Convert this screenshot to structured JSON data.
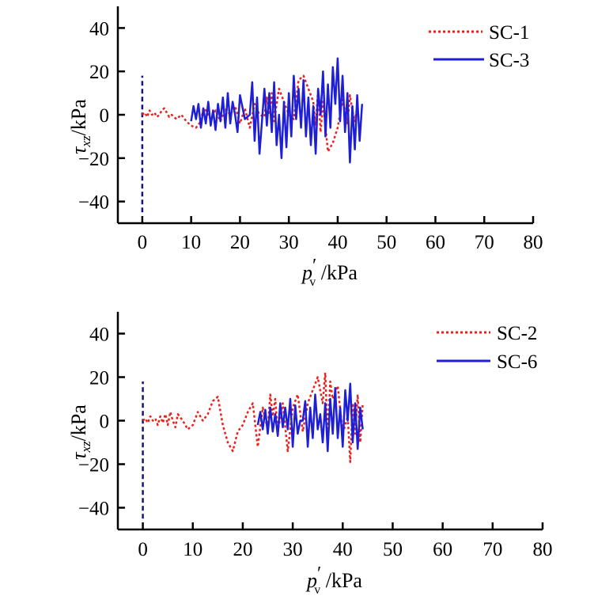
{
  "colors": {
    "red": "#e8231f",
    "blue": "#1f1fd6",
    "navy": "#14147a",
    "axis": "#000000"
  },
  "chart_data": [
    {
      "type": "line",
      "panel": "top",
      "xlabel": "p′v /kPa",
      "ylabel": "τxz/kPa",
      "xlabel_parts": {
        "main": "p",
        "prime": "′",
        "sub": "v",
        "unit": " /kPa"
      },
      "ylabel_parts": {
        "main": "τ",
        "sub": "xz",
        "unit": "/kPa"
      },
      "xlim": [
        -5,
        80
      ],
      "ylim": [
        -50,
        50
      ],
      "x_ticks": [
        0,
        10,
        20,
        30,
        40,
        50,
        60,
        70,
        80
      ],
      "y_ticks": [
        -40,
        -20,
        0,
        20,
        40
      ],
      "x_tick_labels": [
        "0",
        "10",
        "20",
        "30",
        "40",
        "50",
        "60",
        "70",
        "80"
      ],
      "y_tick_labels": [
        "−40",
        "−20",
        "0",
        "20",
        "40"
      ],
      "legend_position": "top-right",
      "reference_line": {
        "x": 0,
        "y_range": [
          -45,
          18
        ]
      },
      "series": [
        {
          "name": "SC-1",
          "style": "dotted",
          "color": "#e8231f",
          "x": [
            0,
            0.5,
            1,
            1.5,
            2,
            2.5,
            3,
            3.5,
            4,
            4.5,
            5,
            5.5,
            6,
            7,
            8,
            9,
            10,
            11,
            12,
            12.5,
            13,
            14,
            15,
            16,
            17,
            18,
            19,
            20,
            21,
            22,
            23,
            24,
            25,
            25.5,
            26,
            26.5,
            27,
            27.5,
            28,
            29,
            30,
            31,
            32,
            33,
            34,
            35,
            35.5,
            36,
            36.5,
            37,
            38,
            39,
            40,
            41,
            42,
            42.5,
            43,
            43.5,
            44
          ],
          "y": [
            0,
            1,
            -1,
            2,
            0,
            1,
            -1,
            0,
            2,
            3,
            1,
            -1,
            0,
            -2,
            0,
            -3,
            -5,
            -6,
            -3,
            3,
            2,
            -2,
            2,
            -3,
            3,
            0,
            4,
            -4,
            3,
            -6,
            5,
            0,
            -1,
            8,
            0,
            10,
            -3,
            5,
            12,
            6,
            0,
            -2,
            16,
            18,
            12,
            6,
            -5,
            12,
            -8,
            6,
            -17,
            -13,
            -6,
            7,
            -4,
            9,
            2,
            -3,
            4
          ]
        },
        {
          "name": "SC-3",
          "style": "solid",
          "color": "#1f1fd6",
          "x": [
            10,
            10.5,
            11,
            11.5,
            12,
            12.5,
            13,
            13.5,
            14,
            14.5,
            15,
            15.5,
            16,
            16.5,
            17,
            17.5,
            18,
            18.5,
            19,
            19.5,
            20,
            21,
            22,
            22.5,
            23,
            23.5,
            24,
            25,
            25.5,
            26,
            26.5,
            27,
            27.5,
            28,
            28.5,
            29,
            29.5,
            30,
            30.5,
            31,
            31.5,
            32,
            32.5,
            33,
            33.5,
            34,
            34.5,
            35,
            35.5,
            36,
            36.5,
            37,
            37.5,
            38,
            38.5,
            39,
            39.5,
            40,
            40.5,
            41,
            41.5,
            42,
            42.5,
            43,
            43.5,
            44,
            44.5,
            45
          ],
          "y": [
            -3,
            4,
            -2,
            5,
            -6,
            3,
            -4,
            6,
            -5,
            2,
            -7,
            5,
            -3,
            8,
            -6,
            10,
            -4,
            6,
            0,
            -8,
            9,
            -2,
            0,
            15,
            -12,
            8,
            -18,
            12,
            -5,
            10,
            -8,
            15,
            -14,
            0,
            -20,
            6,
            -15,
            10,
            -10,
            18,
            -2,
            12,
            -6,
            16,
            -10,
            8,
            -14,
            4,
            -18,
            12,
            0,
            20,
            -10,
            14,
            -6,
            22,
            5,
            26,
            -3,
            18,
            -8,
            10,
            -22,
            4,
            -16,
            9,
            -12,
            5
          ]
        }
      ]
    },
    {
      "type": "line",
      "panel": "bottom",
      "xlabel": "p′v /kPa",
      "ylabel": "τxz/kPa",
      "xlabel_parts": {
        "main": "p",
        "prime": "′",
        "sub": "v",
        "unit": " /kPa"
      },
      "ylabel_parts": {
        "main": "τ",
        "sub": "xz",
        "unit": "/kPa"
      },
      "xlim": [
        -5,
        80
      ],
      "ylim": [
        -50,
        50
      ],
      "x_ticks": [
        0,
        10,
        20,
        30,
        40,
        50,
        60,
        70,
        80
      ],
      "y_ticks": [
        -40,
        -20,
        0,
        20,
        40
      ],
      "x_tick_labels": [
        "0",
        "10",
        "20",
        "30",
        "40",
        "50",
        "60",
        "70",
        "80"
      ],
      "y_tick_labels": [
        "−40",
        "−20",
        "0",
        "20",
        "40"
      ],
      "legend_position": "top-right",
      "reference_line": {
        "x": 0,
        "y_range": [
          -45,
          18
        ]
      },
      "series": [
        {
          "name": "SC-2",
          "style": "dotted",
          "color": "#e8231f",
          "x": [
            0,
            0.5,
            1,
            1.5,
            2,
            2.5,
            3,
            3.5,
            4,
            4.5,
            5,
            5.5,
            6,
            6.5,
            7,
            8,
            9,
            10,
            11,
            12,
            13,
            14,
            15,
            16,
            17,
            18,
            19,
            20,
            21,
            22,
            23,
            24,
            25,
            25.5,
            26,
            26.5,
            27,
            28,
            29,
            30,
            31,
            32,
            33,
            34,
            35,
            36,
            36.5,
            37,
            37.5,
            38,
            39,
            40,
            41,
            41.5,
            42,
            42.5,
            43,
            43.5,
            44
          ],
          "y": [
            0,
            1,
            -1,
            2,
            0,
            1,
            -2,
            2,
            -1,
            3,
            -2,
            4,
            0,
            -3,
            3,
            0,
            -4,
            -2,
            4,
            0,
            3,
            9,
            11,
            -2,
            -10,
            -14,
            -5,
            -2,
            4,
            8,
            -12,
            6,
            -4,
            12,
            2,
            10,
            -5,
            8,
            -14,
            6,
            12,
            -5,
            8,
            14,
            20,
            8,
            22,
            -8,
            18,
            10,
            16,
            -6,
            2,
            -19,
            8,
            -6,
            12,
            -10,
            8
          ]
        },
        {
          "name": "SC-6",
          "style": "solid",
          "color": "#1f1fd6",
          "x": [
            23,
            23.5,
            24,
            24.5,
            25,
            25.5,
            26,
            26.5,
            27,
            27.5,
            28,
            28.5,
            29,
            29.5,
            30,
            30.5,
            31,
            31.5,
            32,
            32.5,
            33,
            33.5,
            34,
            34.5,
            35,
            35.5,
            36,
            36.5,
            37,
            37.5,
            38,
            38.5,
            39,
            39.5,
            40,
            40.5,
            41,
            41.5,
            42,
            42.5,
            43,
            43.5,
            44
          ],
          "y": [
            -2,
            4,
            -4,
            5,
            -6,
            6,
            -5,
            3,
            -7,
            8,
            -3,
            6,
            -4,
            10,
            -12,
            7,
            -6,
            0,
            0,
            9,
            -12,
            6,
            -8,
            12,
            -4,
            3,
            -10,
            8,
            -14,
            10,
            -6,
            15,
            -8,
            6,
            -12,
            14,
            0,
            17,
            -10,
            8,
            -13,
            6,
            -4
          ]
        }
      ]
    }
  ]
}
